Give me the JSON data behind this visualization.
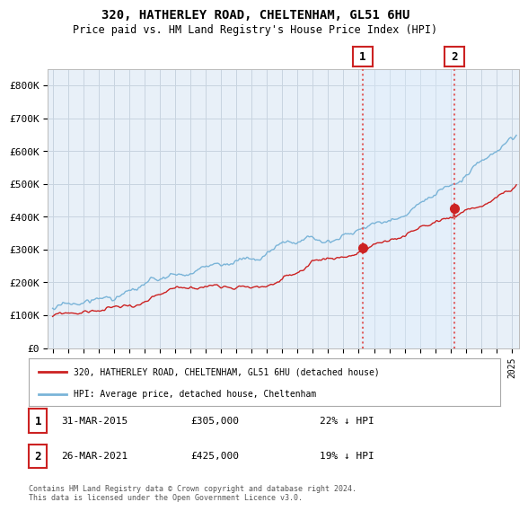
{
  "title": "320, HATHERLEY ROAD, CHELTENHAM, GL51 6HU",
  "subtitle": "Price paid vs. HM Land Registry's House Price Index (HPI)",
  "ylabel_ticks": [
    "£0",
    "£100K",
    "£200K",
    "£300K",
    "£400K",
    "£500K",
    "£600K",
    "£700K",
    "£800K"
  ],
  "ytick_values": [
    0,
    100000,
    200000,
    300000,
    400000,
    500000,
    600000,
    700000,
    800000
  ],
  "ylim": [
    0,
    850000
  ],
  "xlim_start": 1994.7,
  "xlim_end": 2025.5,
  "hpi_color": "#7ab4d8",
  "price_color": "#cc2222",
  "vline_color": "#e06060",
  "shade_color": "#ddeeff",
  "background_color": "#e8f0f8",
  "plot_bg_color": "#e8f0f8",
  "grid_color": "#c8d4e0",
  "sale1_x": 2015.25,
  "sale1_y": 305000,
  "sale1_label": "1",
  "sale1_date": "31-MAR-2015",
  "sale1_price": "£305,000",
  "sale1_hpi": "22% ↓ HPI",
  "sale2_x": 2021.25,
  "sale2_y": 425000,
  "sale2_label": "2",
  "sale2_date": "26-MAR-2021",
  "sale2_price": "£425,000",
  "sale2_hpi": "19% ↓ HPI",
  "legend_line1": "320, HATHERLEY ROAD, CHELTENHAM, GL51 6HU (detached house)",
  "legend_line2": "HPI: Average price, detached house, Cheltenham",
  "footer1": "Contains HM Land Registry data © Crown copyright and database right 2024.",
  "footer2": "This data is licensed under the Open Government Licence v3.0."
}
